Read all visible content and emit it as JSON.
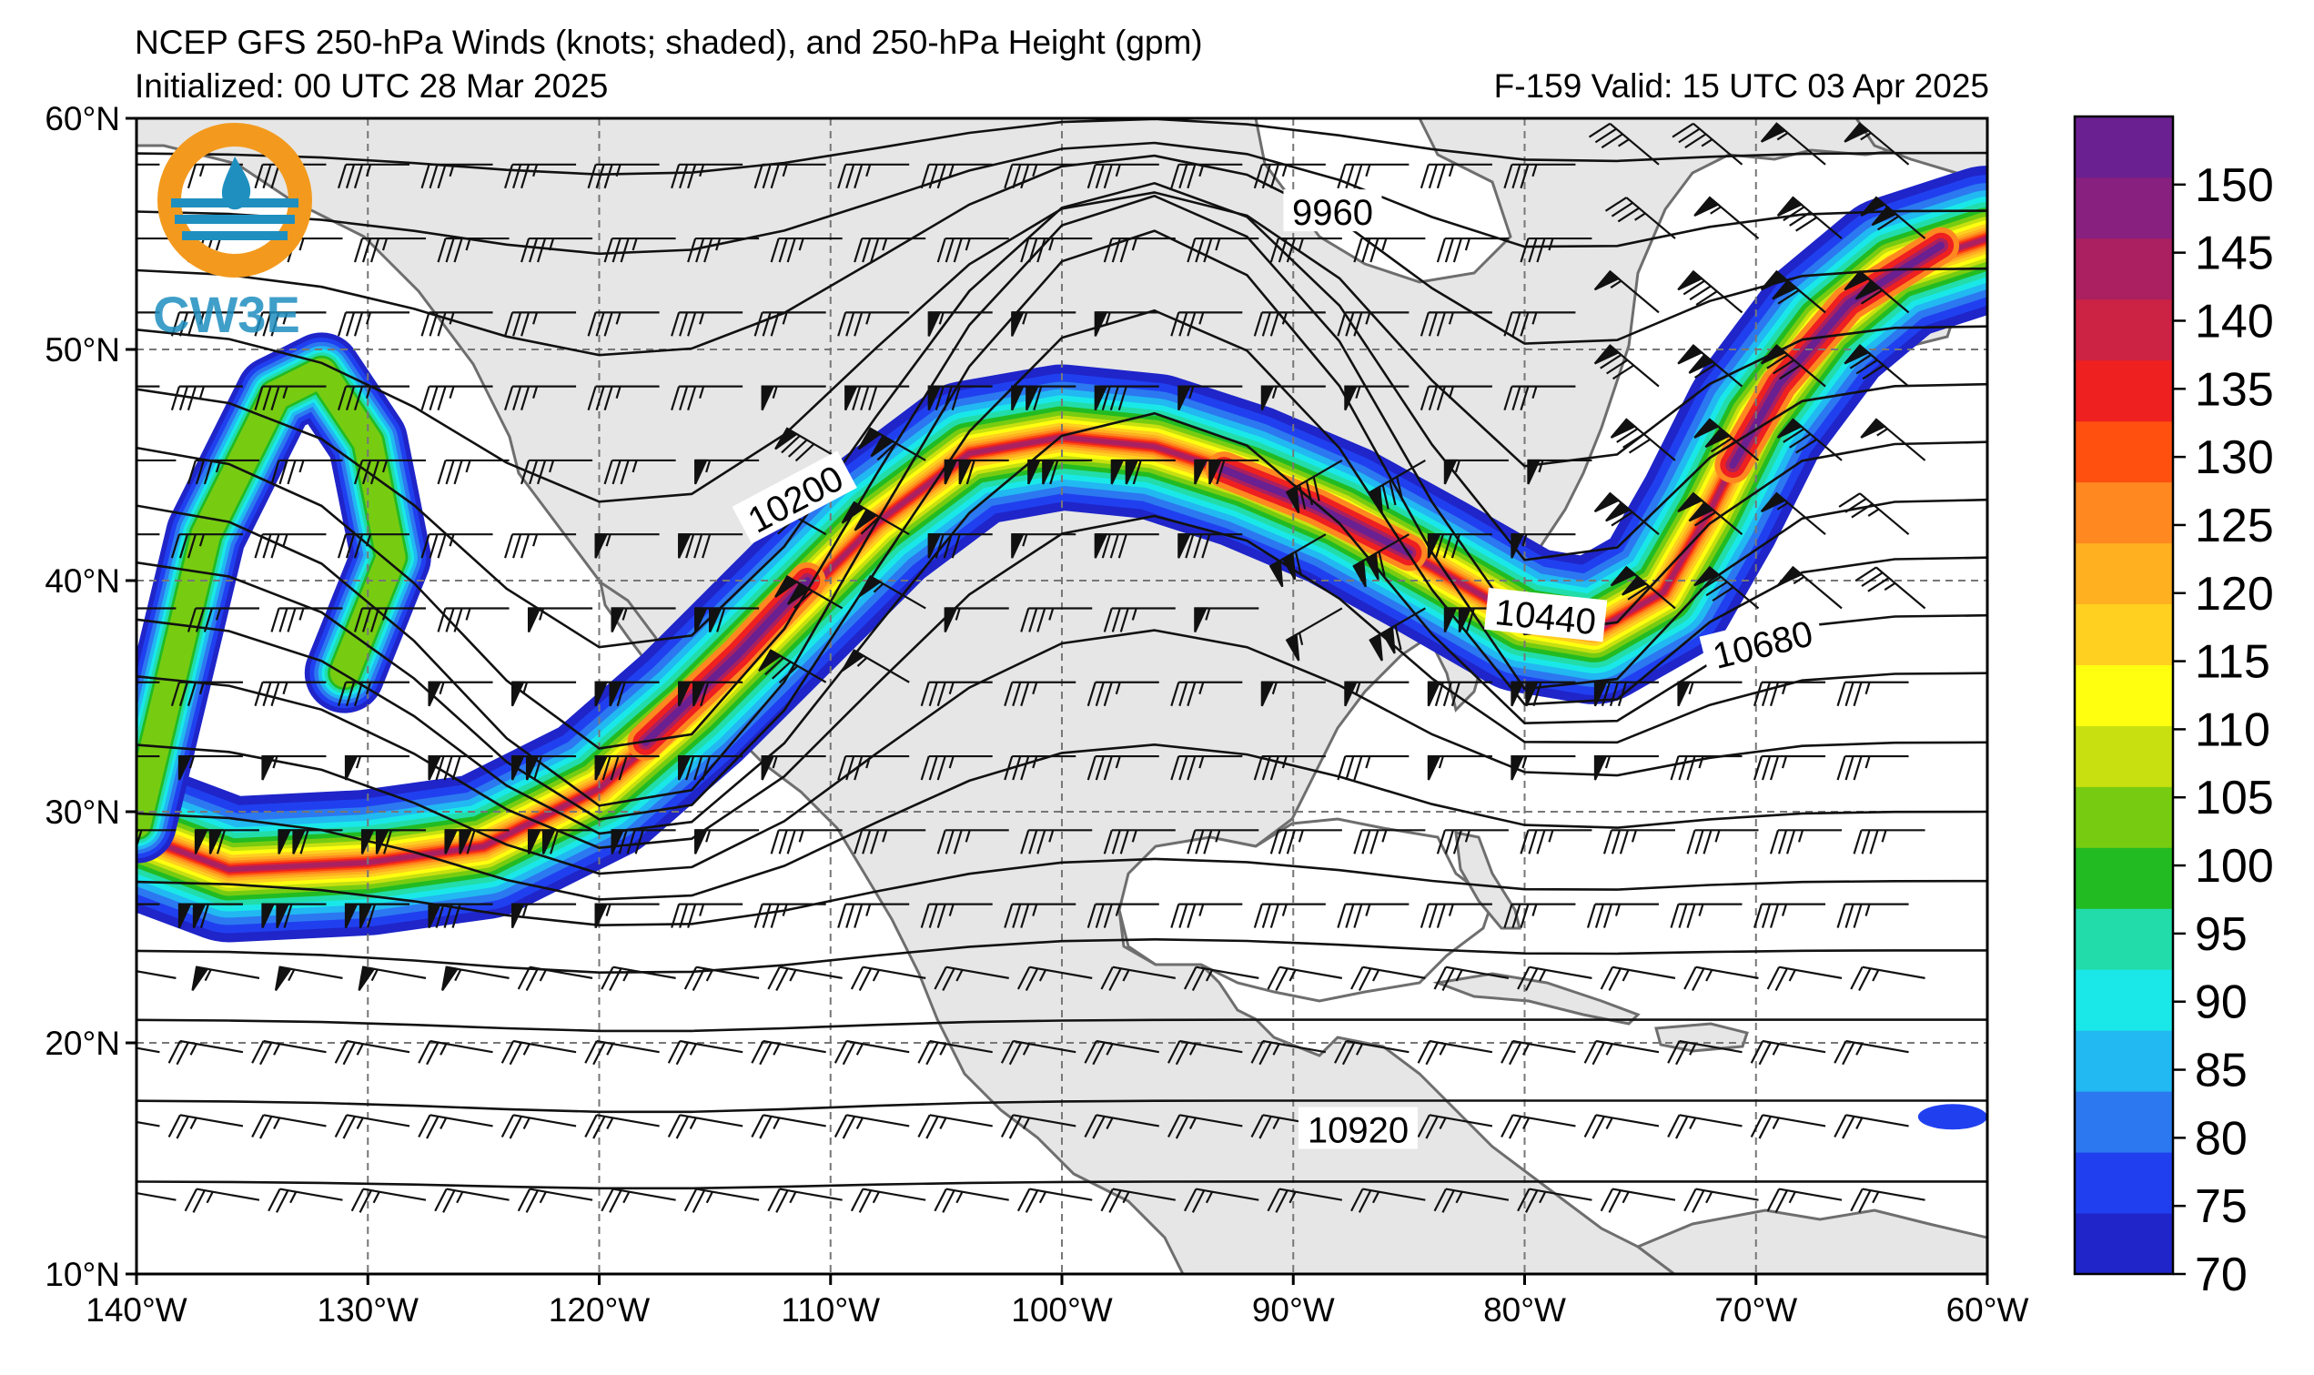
{
  "header": {
    "title": "NCEP GFS 250-hPa Winds (knots; shaded), and 250-hPa Height (gpm)",
    "initialized": "Initialized: 00 UTC 28 Mar 2025",
    "valid": "F-159  Valid: 15 UTC 03 Apr 2025"
  },
  "logo": {
    "text": "CW3E",
    "color": "#1f8fc0",
    "accent": "#f39a1e"
  },
  "map": {
    "lon_range": [
      -140,
      -60
    ],
    "lat_range": [
      10,
      60
    ],
    "lat_labels": [
      "60°N",
      "50°N",
      "40°N",
      "30°N",
      "20°N",
      "10°N"
    ],
    "lon_labels": [
      "140°W",
      "130°W",
      "120°W",
      "110°W",
      "100°W",
      "90°W",
      "80°W",
      "70°W",
      "60°W"
    ],
    "land_color": "#e6e6e6",
    "ocean_color": "#ffffff"
  },
  "contours": [
    {
      "label": "9960",
      "label_lon": -88.3,
      "label_lat": 55.9
    },
    {
      "label": "10200",
      "label_lon": -111.5,
      "label_lat": 43.5
    },
    {
      "label": "10440",
      "label_lon": -79.1,
      "label_lat": 38.4
    },
    {
      "label": "10680",
      "label_lon": -69.7,
      "label_lat": 37.2
    },
    {
      "label": "10920",
      "label_lon": -87.2,
      "label_lat": 16.2
    }
  ],
  "colorbar": {
    "ticks": [
      "70",
      "75",
      "80",
      "85",
      "90",
      "95",
      "100",
      "105",
      "110",
      "115",
      "120",
      "125",
      "130",
      "135",
      "140",
      "145",
      "150"
    ],
    "colors": [
      "#1f25c9",
      "#2040f0",
      "#2c78f0",
      "#22b8f2",
      "#1ae8e8",
      "#22ddaa",
      "#22bb22",
      "#77cc11",
      "#c8e010",
      "#ffff10",
      "#ffd020",
      "#ffb020",
      "#ff8820",
      "#ff5010",
      "#ee2020",
      "#cc2244",
      "#aa2060",
      "#882080",
      "#6a2090"
    ]
  }
}
